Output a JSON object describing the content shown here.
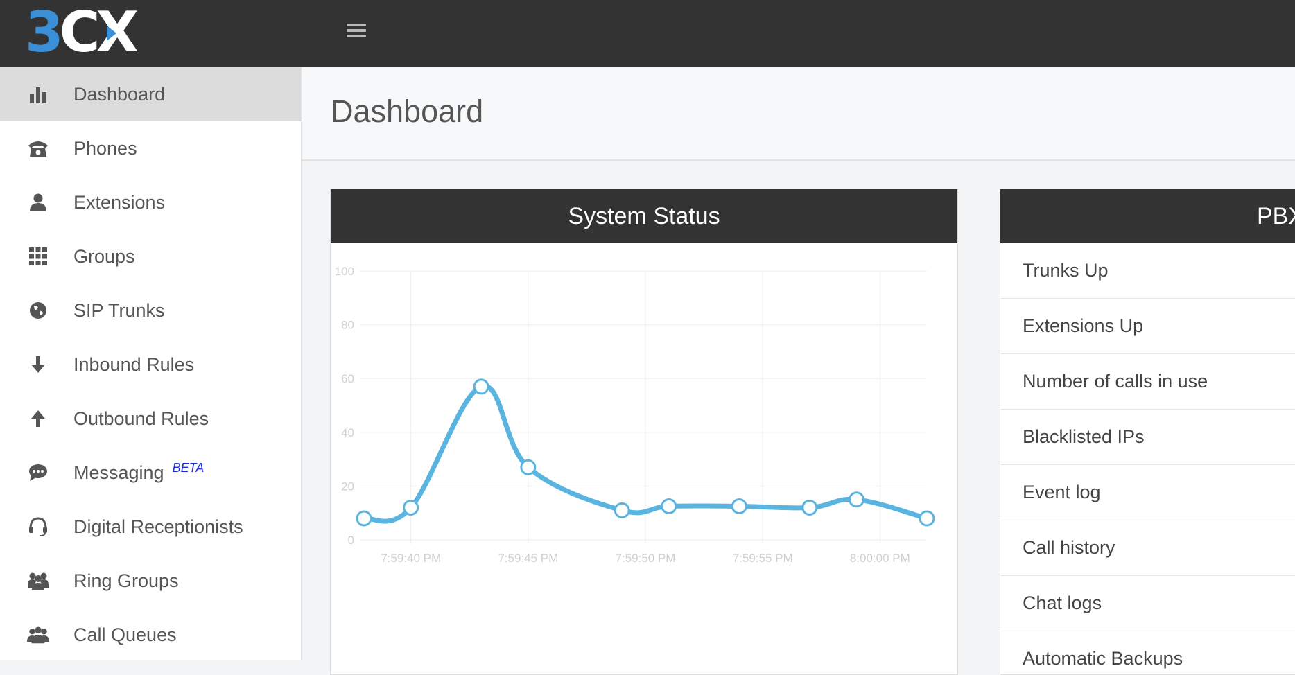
{
  "app": {
    "logo_text": "3CX",
    "logo_colors": {
      "accent": "#3b8fd6",
      "text": "#ffffff"
    }
  },
  "topbar": {
    "menu_icon": "hamburger-icon"
  },
  "sidebar": {
    "items": [
      {
        "label": "Dashboard",
        "icon": "bar-chart-icon",
        "active": true
      },
      {
        "label": "Phones",
        "icon": "phone-icon"
      },
      {
        "label": "Extensions",
        "icon": "user-icon"
      },
      {
        "label": "Groups",
        "icon": "grid-icon"
      },
      {
        "label": "SIP Trunks",
        "icon": "globe-icon"
      },
      {
        "label": "Inbound Rules",
        "icon": "arrow-down-icon"
      },
      {
        "label": "Outbound Rules",
        "icon": "arrow-up-icon"
      },
      {
        "label": "Messaging",
        "icon": "chat-icon",
        "badge": "BETA"
      },
      {
        "label": "Digital Receptionists",
        "icon": "headset-icon"
      },
      {
        "label": "Ring Groups",
        "icon": "users-icon"
      },
      {
        "label": "Call Queues",
        "icon": "group-icon"
      }
    ]
  },
  "page": {
    "title": "Dashboard"
  },
  "system_status": {
    "title": "System Status",
    "chart_data": {
      "type": "line",
      "x": [
        "7:59:38 PM",
        "7:59:40 PM",
        "7:59:43 PM",
        "7:59:45 PM",
        "7:59:49 PM",
        "7:59:51 PM",
        "7:59:54 PM",
        "7:59:57 PM",
        "7:59:59 PM",
        "8:00:02 PM"
      ],
      "xticks": [
        "7:59:40 PM",
        "7:59:45 PM",
        "7:59:50 PM",
        "7:59:55 PM",
        "8:00:00 PM"
      ],
      "series": [
        {
          "values": [
            8,
            12,
            57,
            27,
            11,
            12.5,
            12.5,
            12,
            15,
            8
          ],
          "color": "#5ab4e0"
        }
      ],
      "yticks": [
        0,
        20,
        40,
        60,
        80,
        100
      ],
      "ylim": [
        0,
        100
      ],
      "grid": true
    }
  },
  "pbx": {
    "title": "PBX",
    "rows": [
      "Trunks Up",
      "Extensions Up",
      "Number of calls in use",
      "Blacklisted IPs",
      "Event log",
      "Call history",
      "Chat logs",
      "Automatic Backups"
    ]
  }
}
